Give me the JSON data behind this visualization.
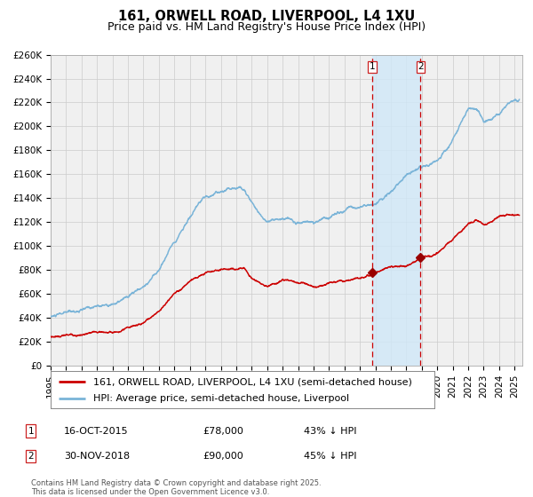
{
  "title": "161, ORWELL ROAD, LIVERPOOL, L4 1XU",
  "subtitle": "Price paid vs. HM Land Registry's House Price Index (HPI)",
  "ylim": [
    0,
    260000
  ],
  "xlim_start": 1995.0,
  "xlim_end": 2025.5,
  "yticks": [
    0,
    20000,
    40000,
    60000,
    80000,
    100000,
    120000,
    140000,
    160000,
    180000,
    200000,
    220000,
    240000,
    260000
  ],
  "ytick_labels": [
    "£0",
    "£20K",
    "£40K",
    "£60K",
    "£80K",
    "£100K",
    "£120K",
    "£140K",
    "£160K",
    "£180K",
    "£200K",
    "£220K",
    "£240K",
    "£260K"
  ],
  "xtick_years": [
    1995,
    1996,
    1997,
    1998,
    1999,
    2000,
    2001,
    2002,
    2003,
    2004,
    2005,
    2006,
    2007,
    2008,
    2009,
    2010,
    2011,
    2012,
    2013,
    2014,
    2015,
    2016,
    2017,
    2018,
    2019,
    2020,
    2021,
    2022,
    2023,
    2024,
    2025
  ],
  "hpi_color": "#7ab4d8",
  "price_color": "#cc0000",
  "marker_color": "#990000",
  "grid_color": "#cccccc",
  "background_color": "#ffffff",
  "plot_bg_color": "#f0f0f0",
  "shade_color": "#d0e8f8",
  "sale1_x": 2015.79,
  "sale1_y": 78000,
  "sale1_label": "1",
  "sale1_date": "16-OCT-2015",
  "sale1_price": "£78,000",
  "sale1_hpi": "43% ↓ HPI",
  "sale2_x": 2018.92,
  "sale2_y": 90000,
  "sale2_label": "2",
  "sale2_date": "30-NOV-2018",
  "sale2_price": "£90,000",
  "sale2_hpi": "45% ↓ HPI",
  "shade_x1": 2015.79,
  "shade_x2": 2018.92,
  "legend_label_red": "161, ORWELL ROAD, LIVERPOOL, L4 1XU (semi-detached house)",
  "legend_label_blue": "HPI: Average price, semi-detached house, Liverpool",
  "footnote1": "Contains HM Land Registry data © Crown copyright and database right 2025.",
  "footnote2": "This data is licensed under the Open Government Licence v3.0.",
  "title_fontsize": 10.5,
  "subtitle_fontsize": 9,
  "tick_fontsize": 7.5,
  "legend_fontsize": 8,
  "annot_fontsize": 8
}
